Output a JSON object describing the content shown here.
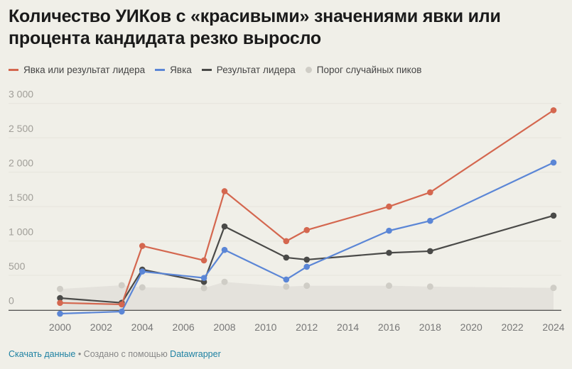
{
  "title": "Количество УИКов с «красивыми» значениями явки или процента кандидата резко выросло",
  "footer": {
    "download": "Скачать данные",
    "separator": " • Создано с помощью ",
    "tool": "Datawrapper"
  },
  "chart_data": {
    "type": "line",
    "title": "Количество УИКов с «красивыми» значениями явки или процента кандидата резко выросло",
    "x": [
      2000,
      2003,
      2004,
      2007,
      2008,
      2011,
      2012,
      2016,
      2018,
      2024
    ],
    "xticks": [
      "2000",
      "2002",
      "2004",
      "2006",
      "2008",
      "2010",
      "2012",
      "2014",
      "2016",
      "2018",
      "2020",
      "2022",
      "2024"
    ],
    "yticks": [
      "0",
      "500",
      "1 000",
      "1 500",
      "2 000",
      "2 500",
      "3 000"
    ],
    "ylim": [
      0,
      3000
    ],
    "xlim": [
      2000,
      2024
    ],
    "grid": true,
    "legend_position": "top",
    "series": [
      {
        "name": "Явка или результат лидера",
        "color": "#d4674f",
        "values": [
          100,
          78,
          928,
          718,
          1723,
          997,
          1159,
          1500,
          1707,
          2900
        ]
      },
      {
        "name": "Явка",
        "color": "#5b86d6",
        "values": [
          -57,
          -26,
          556,
          463,
          870,
          439,
          625,
          1149,
          1293,
          2140
        ]
      },
      {
        "name": "Результат лидера",
        "color": "#4a4a48",
        "values": [
          170,
          101,
          584,
          405,
          1211,
          759,
          728,
          828,
          852,
          1369
        ]
      },
      {
        "name": "Порог случайных пиков",
        "color": "#cfcdc6",
        "style": "area-dots",
        "values": [
          302,
          356,
          325,
          315,
          405,
          336,
          349,
          349,
          336,
          318
        ]
      }
    ]
  }
}
